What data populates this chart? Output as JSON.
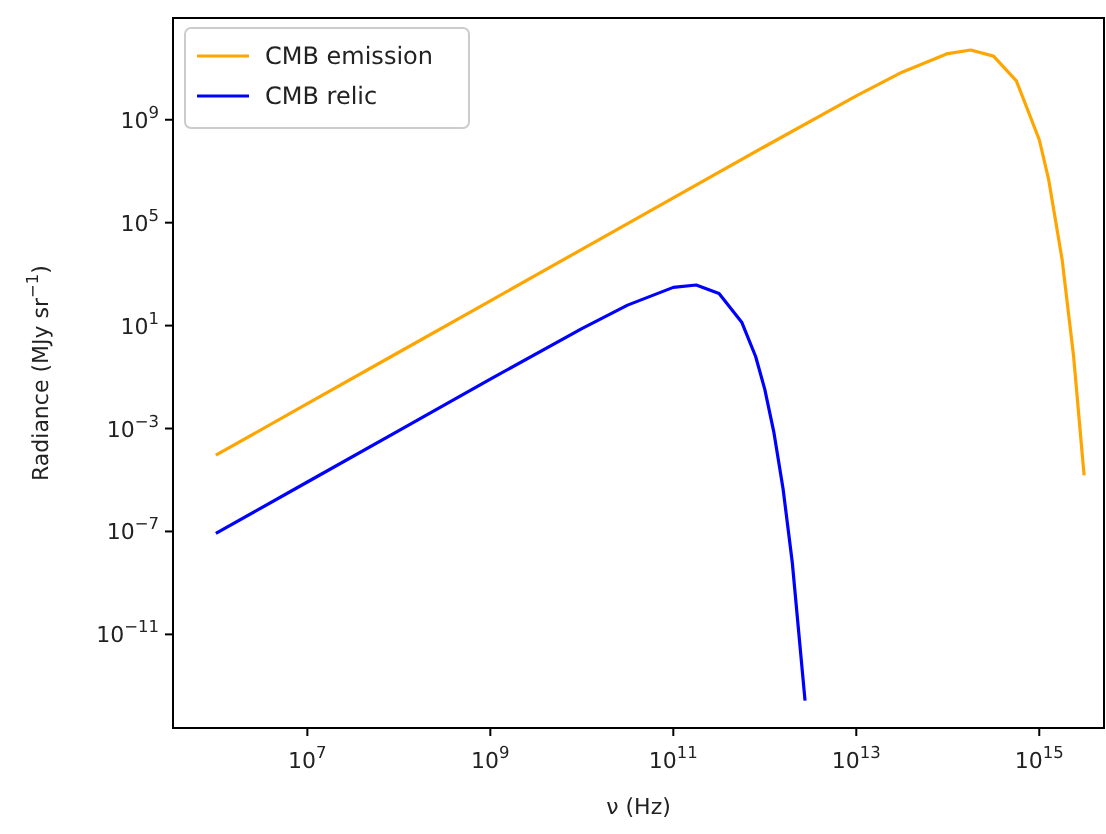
{
  "chart_data": {
    "type": "line",
    "xlabel": "ν (Hz)",
    "ylabel": "Radiance (MJy sr$^{−1}$)",
    "log": "xy",
    "legend": "top left",
    "grid": false,
    "marker": "none",
    "line_style": "solid",
    "xlim": [
      340000.0,
      5100000000000000.0
    ],
    "ylim": [
      2.3e-15,
      9000000000000.0
    ],
    "xticks": [
      {
        "value": 10000000.0,
        "label": "10$^{7}$"
      },
      {
        "value": 1000000000.0,
        "label": "10$^{9}$"
      },
      {
        "value": 100000000000.0,
        "label": "10$^{11}$"
      },
      {
        "value": 10000000000000.0,
        "label": "10$^{13}$"
      },
      {
        "value": 1000000000000000.0,
        "label": "10$^{15}$"
      }
    ],
    "yticks": [
      {
        "value": 1e-11,
        "label": "10$^{−11}$"
      },
      {
        "value": 1e-07,
        "label": "10$^{−7}$"
      },
      {
        "value": 0.001,
        "label": "10$^{−3}$"
      },
      {
        "value": 10,
        "label": "10$^{1}$"
      },
      {
        "value": 100000.0,
        "label": "10$^{5}$"
      },
      {
        "value": 1000000000.0,
        "label": "10$^{9}$"
      }
    ],
    "series": [
      {
        "name": "CMB emission",
        "color": "#ffa500",
        "x": [
          1000000.0,
          10000000.0,
          100000000.0,
          1000000000.0,
          10000000000.0,
          100000000000.0,
          1000000000000.0,
          10000000000000.0,
          31620000000000.0,
          100000000000000.0,
          177800000000000.0,
          316200000000000.0,
          562300000000000.0,
          1000000000000000.0,
          1259000000000000.0,
          1778000000000000.0,
          2371000000000000.0,
          3090000000000000.0
        ],
        "values": [
          9.2e-05,
          0.0092,
          0.92,
          92,
          9200,
          920000.0,
          91300000.0,
          8490000000.0,
          70800000000.0,
          372000000000.0,
          512000000000.0,
          296000000000.0,
          32500000000.0,
          167000000.0,
          5300000.0,
          3680,
          0.66,
          1.52e-05
        ]
      },
      {
        "name": "CMB relic",
        "color": "#0000ff",
        "x": [
          1000000.0,
          10000000.0,
          100000000.0,
          1000000000.0,
          10000000000.0,
          31620000000.0,
          100000000000.0,
          177800000000.0,
          316200000000.0,
          562300000000.0,
          794000000000.0,
          1000000000000.0,
          1259000000000.0,
          1585000000000.0,
          1995000000000.0,
          2754000000000.0
        ],
        "values": [
          8.36e-08,
          8.36e-06,
          0.000836,
          0.0829,
          7.65,
          62.5,
          306,
          378,
          178,
          13.1,
          0.63,
          0.0333,
          0.00069,
          4.45e-06,
          6.5e-09,
          2.68e-14
        ]
      }
    ]
  }
}
